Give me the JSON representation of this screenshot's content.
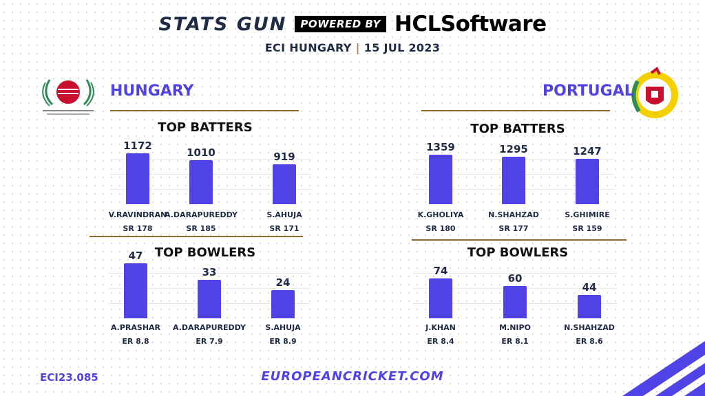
{
  "header": {
    "brand": "STATS GUN",
    "powered_by": "POWERED BY",
    "sponsor": "HCLSoftware",
    "event": "ECI HUNGARY",
    "date": "15 JUL 2023"
  },
  "footer": {
    "code": "ECI23.085",
    "url": "EUROPEANCRICKET.COM"
  },
  "colors": {
    "bar": "#4f43e6",
    "accent": "#8a6a2e",
    "text": "#1f2a44"
  },
  "teams": [
    {
      "name": "HUNGARY",
      "batters_title": "TOP BATTERS",
      "bowlers_title": "TOP BOWLERS",
      "batters": [
        {
          "name": "V.RAVINDRAN",
          "value": "1172",
          "stat": "SR 178"
        },
        {
          "name": "A.DARAPUREDDY",
          "value": "1010",
          "stat": "SR 185"
        },
        {
          "name": "S.AHUJA",
          "value": "919",
          "stat": "SR 171"
        }
      ],
      "bowlers": [
        {
          "name": "A.PRASHAR",
          "value": "47",
          "stat": "ER 8.8"
        },
        {
          "name": "A.DARAPUREDDY",
          "value": "33",
          "stat": "ER 7.9"
        },
        {
          "name": "S.AHUJA",
          "value": "24",
          "stat": "ER 8.9"
        }
      ]
    },
    {
      "name": "PORTUGAL",
      "batters_title": "TOP BATTERS",
      "bowlers_title": "TOP BOWLERS",
      "batters": [
        {
          "name": "K.GHOLIYA",
          "value": "1359",
          "stat": "SR 180"
        },
        {
          "name": "N.SHAHZAD",
          "value": "1295",
          "stat": "SR 177"
        },
        {
          "name": "S.GHIMIRE",
          "value": "1247",
          "stat": "SR 159"
        }
      ],
      "bowlers": [
        {
          "name": "J.KHAN",
          "value": "74",
          "stat": "ER 8.4"
        },
        {
          "name": "M.NIPO",
          "value": "60",
          "stat": "ER 8.1"
        },
        {
          "name": "N.SHAHZAD",
          "value": "44",
          "stat": "ER 8.6"
        }
      ]
    }
  ],
  "chart_data": [
    {
      "type": "bar",
      "title": "TOP BATTERS",
      "categories": [
        "V.RAVINDRAN",
        "A.DARAPUREDDY",
        "S.AHUJA"
      ],
      "values": [
        1172,
        1010,
        919
      ],
      "ylim": [
        0,
        1400
      ]
    },
    {
      "type": "bar",
      "title": "TOP BOWLERS",
      "categories": [
        "A.PRASHAR",
        "A.DARAPUREDDY",
        "S.AHUJA"
      ],
      "values": [
        47,
        33,
        24
      ],
      "ylim": [
        0,
        80
      ]
    },
    {
      "type": "bar",
      "title": "TOP BATTERS",
      "categories": [
        "K.GHOLIYA",
        "N.SHAHZAD",
        "S.GHIMIRE"
      ],
      "values": [
        1359,
        1295,
        1247
      ],
      "ylim": [
        0,
        1400
      ]
    },
    {
      "type": "bar",
      "title": "TOP BOWLERS",
      "categories": [
        "J.KHAN",
        "M.NIPO",
        "N.SHAHZAD"
      ],
      "values": [
        74,
        60,
        44
      ],
      "ylim": [
        0,
        80
      ]
    }
  ]
}
